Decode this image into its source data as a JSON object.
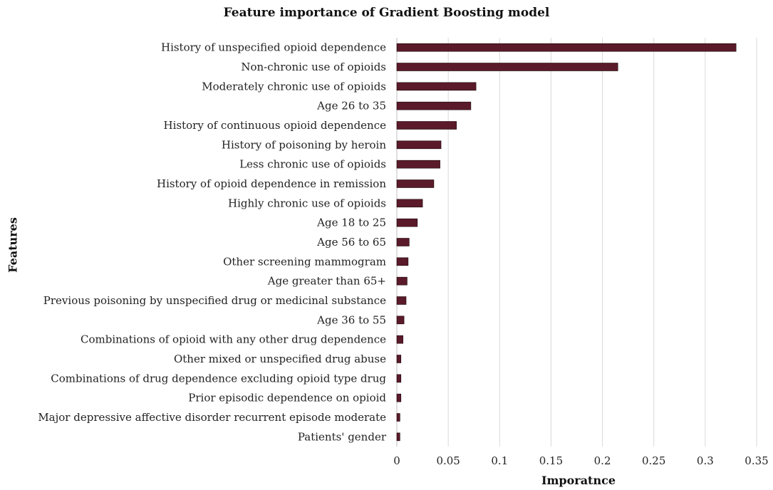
{
  "chart_data": {
    "type": "bar",
    "orientation": "horizontal",
    "title": "Feature importance of Gradient Boosting model",
    "xlabel": "Imporatnce",
    "ylabel": "Features",
    "xlim": [
      0,
      0.35
    ],
    "xticks": [
      "0",
      "0.05",
      "0.1",
      "0.15",
      "0.2",
      "0.25",
      "0.3",
      "0.35"
    ],
    "grid": "vertical",
    "legend": "none",
    "bar_color": "#5a1a2a",
    "categories": [
      "History of unspecified opioid dependence",
      "Non-chronic use of opioids",
      "Moderately chronic use of opioids",
      "Age 26 to 35",
      "History of continuous opioid dependence",
      "History of poisoning by heroin",
      "Less chronic use of opioids",
      "History of opioid dependence in remission",
      "Highly chronic use of opioids",
      "Age 18 to 25",
      "Age 56 to 65",
      "Other screening mammogram",
      "Age greater than 65+",
      "Previous poisoning by unspecified drug or medicinal substance",
      "Age 36 to 55",
      "Combinations of opioid with any other drug dependence",
      "Other mixed or unspecified drug abuse",
      "Combinations of drug dependence excluding opioid type drug",
      "Prior episodic dependence on opioid",
      "Major depressive affective disorder recurrent episode moderate",
      "Patients' gender"
    ],
    "values": [
      0.33,
      0.215,
      0.077,
      0.072,
      0.058,
      0.043,
      0.042,
      0.036,
      0.025,
      0.02,
      0.012,
      0.011,
      0.01,
      0.009,
      0.007,
      0.006,
      0.004,
      0.004,
      0.004,
      0.003,
      0.003
    ]
  }
}
